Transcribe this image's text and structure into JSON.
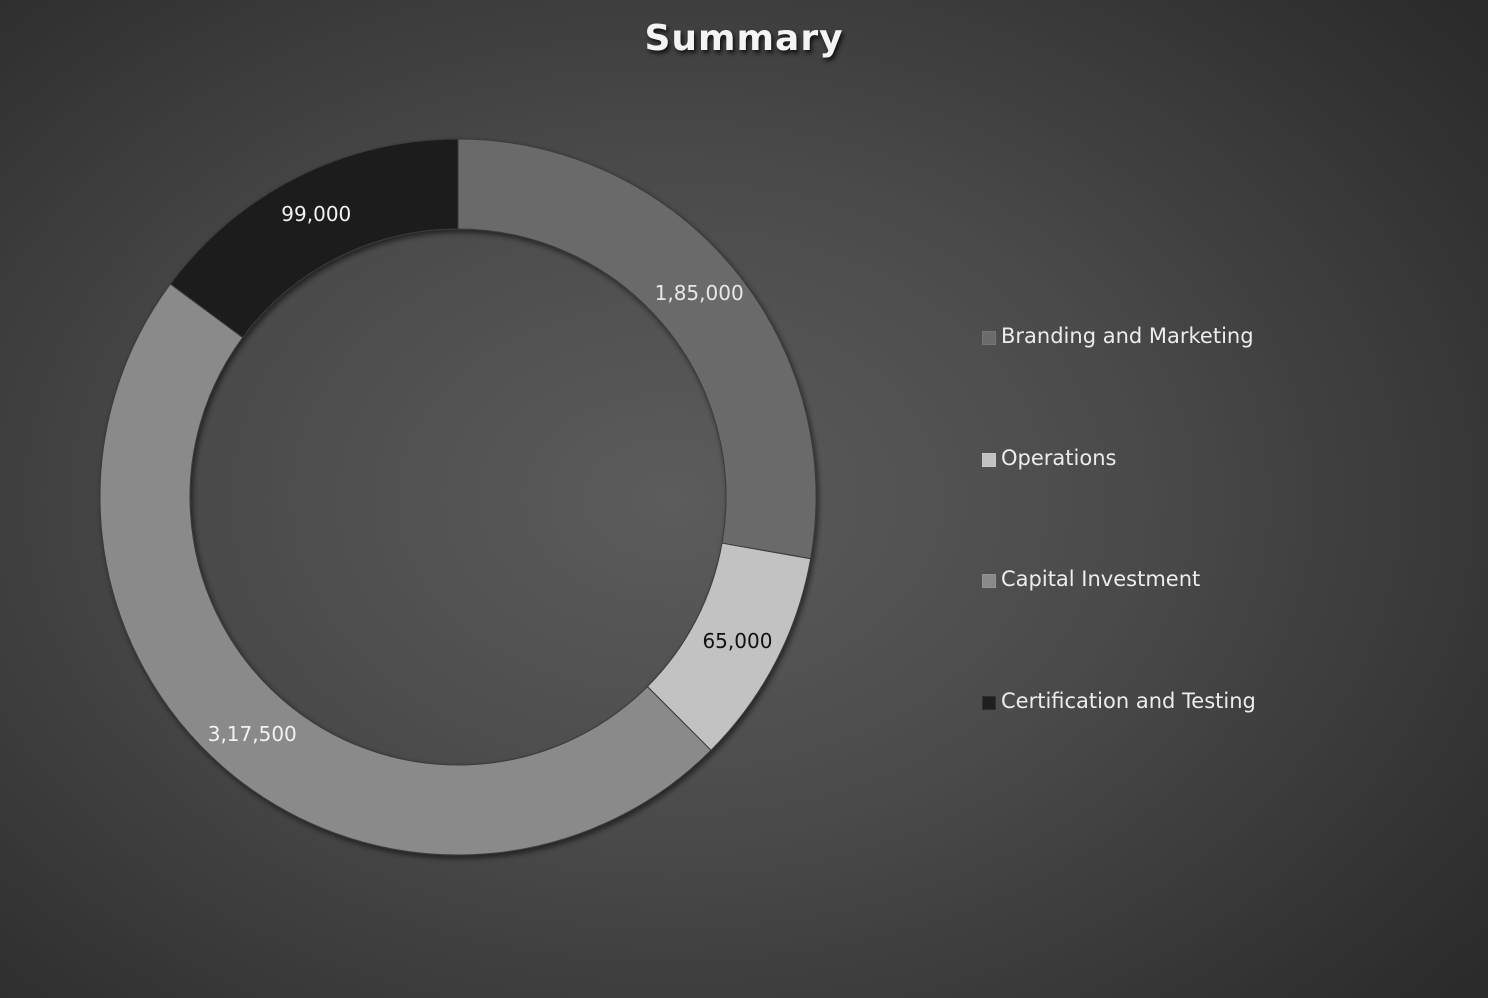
{
  "chart_data": {
    "type": "pie",
    "variant": "doughnut",
    "title": "Summary",
    "categories": [
      "Branding and Marketing",
      "Operations",
      "Capital Investment",
      "Certification and Testing"
    ],
    "values": [
      185000,
      65000,
      317500,
      99000
    ],
    "data_labels": [
      "1,85,000",
      "65,000",
      "3,17,500",
      "99,000"
    ],
    "colors": [
      "#6b6b6b",
      "#c2c2c2",
      "#8a8a8a",
      "#1f1f1f"
    ],
    "label_colors": [
      "#e8e8e8",
      "#111111",
      "#f2f2f2",
      "#f2f2f2"
    ],
    "legend_position": "right",
    "start_angle": "top (12 o'clock), clockwise"
  }
}
